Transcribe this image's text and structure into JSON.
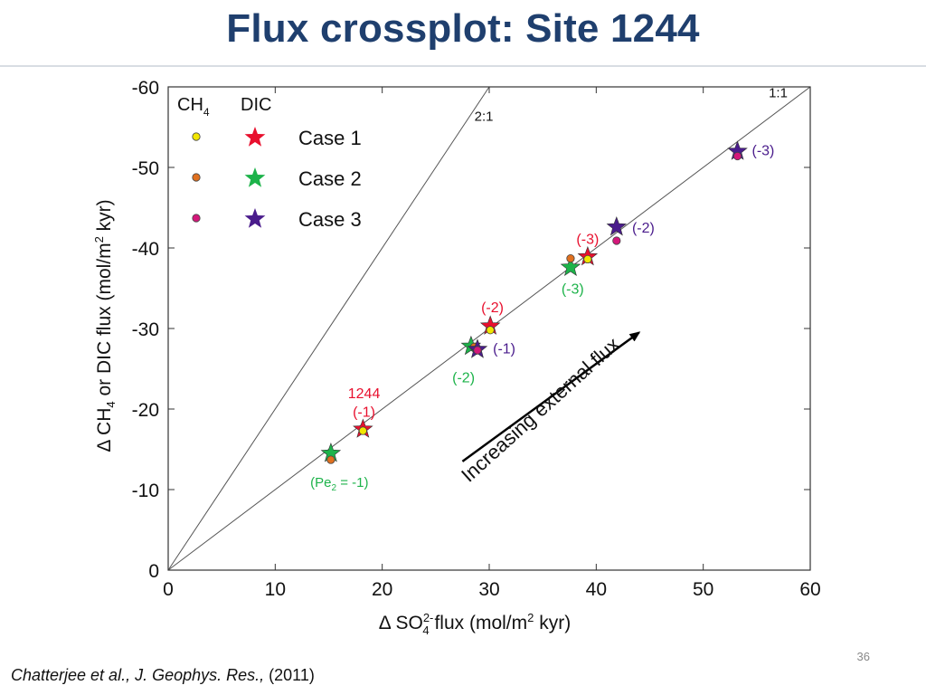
{
  "slide": {
    "title": "Flux crossplot: Site 1244",
    "page_number": "36",
    "citation_authors": "Chatterjee et al., J. Geophys. Res.,",
    "citation_year": "(2011)"
  },
  "chart_data": {
    "type": "scatter",
    "xlabel": {
      "prefix": "Δ SO",
      "sub": "4",
      "sup": "2-",
      "suffix": " flux (mol/m",
      "suffix_sup": "2",
      "suffix_end": " kyr)"
    },
    "ylabel": {
      "prefix": "Δ CH",
      "sub": "4",
      "middle": " or DIC flux (mol/m",
      "sup": "2",
      "end": " kyr)"
    },
    "xlim": [
      0,
      60
    ],
    "ylim": [
      0,
      -60
    ],
    "x_ticks": [
      0,
      10,
      20,
      30,
      40,
      50,
      60
    ],
    "y_ticks": [
      0,
      -10,
      -20,
      -30,
      -40,
      -50,
      -60
    ],
    "x_tick_labels": [
      "0",
      "10",
      "20",
      "30",
      "40",
      "50",
      "60"
    ],
    "y_tick_labels": [
      "0",
      "-10",
      "-20",
      "-30",
      "-40",
      "-50",
      "-60"
    ],
    "grid": false,
    "legend_position": "top-left",
    "legend_headers": [
      "CH",
      "DIC"
    ],
    "legend_header_sub": "4",
    "reference_lines": [
      {
        "label": "1:1",
        "slope": 1
      },
      {
        "label": "2:1",
        "slope": 2
      }
    ],
    "arrow": {
      "label": "Increasing external flux",
      "from": [
        27.5,
        -13.5
      ],
      "to": [
        44,
        -29.5
      ]
    },
    "colors": {
      "case1": "#e8102e",
      "case2": "#1db34a",
      "case3": "#4a1c8c"
    },
    "series": [
      {
        "name": "Case 1",
        "color": "#e8102e",
        "ch4_marker_color": "#f2e600",
        "dic": [
          {
            "x": 18.2,
            "y": -17.5
          },
          {
            "x": 30.1,
            "y": -30.3
          },
          {
            "x": 39.2,
            "y": -38.9
          }
        ],
        "ch4": [
          {
            "x": 18.2,
            "y": -17.3
          },
          {
            "x": 30.1,
            "y": -29.8
          },
          {
            "x": 39.2,
            "y": -38.6
          }
        ]
      },
      {
        "name": "Case 2",
        "color": "#1db34a",
        "ch4_marker_color": "#e0701f",
        "dic": [
          {
            "x": 15.2,
            "y": -14.5
          },
          {
            "x": 28.3,
            "y": -27.8
          },
          {
            "x": 37.6,
            "y": -37.6
          }
        ],
        "ch4": [
          {
            "x": 15.2,
            "y": -13.7
          },
          {
            "x": 28.6,
            "y": -27.7
          },
          {
            "x": 37.6,
            "y": -38.7
          }
        ]
      },
      {
        "name": "Case 3",
        "color": "#4a1c8c",
        "ch4_marker_color": "#d4177a",
        "dic": [
          {
            "x": 28.9,
            "y": -27.4
          },
          {
            "x": 41.9,
            "y": -42.6
          },
          {
            "x": 53.2,
            "y": -52.0
          }
        ],
        "ch4": [
          {
            "x": 28.9,
            "y": -27.3
          },
          {
            "x": 41.9,
            "y": -40.9
          },
          {
            "x": 53.2,
            "y": -51.4
          }
        ]
      }
    ],
    "annotations": [
      {
        "text": "1244",
        "color": "#e8102e",
        "x": 18.3,
        "y": -22.0
      },
      {
        "text": "(-1)",
        "color": "#e8102e",
        "x": 18.3,
        "y": -19.7
      },
      {
        "text": "(-2)",
        "color": "#e8102e",
        "x": 30.3,
        "y": -32.7
      },
      {
        "text": "(-3)",
        "color": "#e8102e",
        "x": 39.2,
        "y": -41.2
      },
      {
        "text": "(-2)",
        "color": "#1db34a",
        "x": 27.6,
        "y": -24.0
      },
      {
        "text": "(-3)",
        "color": "#1db34a",
        "x": 37.8,
        "y": -35.0
      },
      {
        "text": "(-1)",
        "color": "#4a1c8c",
        "x": 31.4,
        "y": -27.6
      },
      {
        "text": "(-2)",
        "color": "#4a1c8c",
        "x": 44.4,
        "y": -42.6
      },
      {
        "text": "(-3)",
        "color": "#4a1c8c",
        "x": 55.6,
        "y": -52.2
      }
    ],
    "pe_annotation": {
      "prefix": "(Pe",
      "sub": "2",
      "suffix": " = -1)",
      "color": "#1db34a",
      "x": 16.0,
      "y": -11.0
    }
  }
}
